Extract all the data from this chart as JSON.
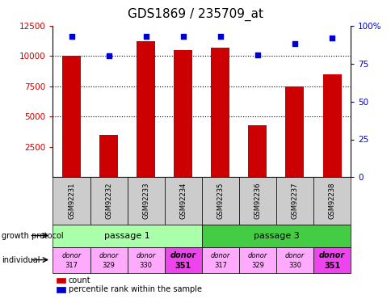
{
  "title": "GDS1869 / 235709_at",
  "samples": [
    "GSM92231",
    "GSM92232",
    "GSM92233",
    "GSM92234",
    "GSM92235",
    "GSM92236",
    "GSM92237",
    "GSM92238"
  ],
  "counts": [
    10000,
    3500,
    11200,
    10500,
    10700,
    4300,
    7500,
    8500
  ],
  "percentile_ranks": [
    93,
    80,
    93,
    93,
    93,
    81,
    88,
    92
  ],
  "bar_color": "#cc0000",
  "dot_color": "#0000cc",
  "ylim_left": [
    0,
    12500
  ],
  "ylim_right": [
    0,
    100
  ],
  "yticks_left": [
    2500,
    5000,
    7500,
    10000,
    12500
  ],
  "ytick_labels_left": [
    "2500",
    "5000",
    "7500",
    "10000",
    "12500"
  ],
  "yticks_right": [
    0,
    25,
    50,
    75,
    100
  ],
  "ytick_labels_right": [
    "0",
    "25",
    "50",
    "75",
    "100%"
  ],
  "passage_groups": [
    {
      "label": "passage 1",
      "start": 0,
      "end": 3,
      "color": "#aaffaa"
    },
    {
      "label": "passage 3",
      "start": 4,
      "end": 7,
      "color": "#44cc44"
    }
  ],
  "donors": [
    "317",
    "329",
    "330",
    "351",
    "317",
    "329",
    "330",
    "351"
  ],
  "donor_colors": [
    "#ffaaff",
    "#ffaaff",
    "#ffaaff",
    "#ee44ee",
    "#ffaaff",
    "#ffaaff",
    "#ffaaff",
    "#ee44ee"
  ],
  "donor_bold": [
    false,
    false,
    false,
    true,
    false,
    false,
    false,
    true
  ],
  "growth_protocol_label": "growth protocol",
  "individual_label": "individual",
  "legend_count_label": "count",
  "legend_percentile_label": "percentile rank within the sample",
  "title_fontsize": 11,
  "axis_label_color_left": "#cc0000",
  "axis_label_color_right": "#0000cc",
  "sample_box_color": "#cccccc",
  "bar_width": 0.5
}
